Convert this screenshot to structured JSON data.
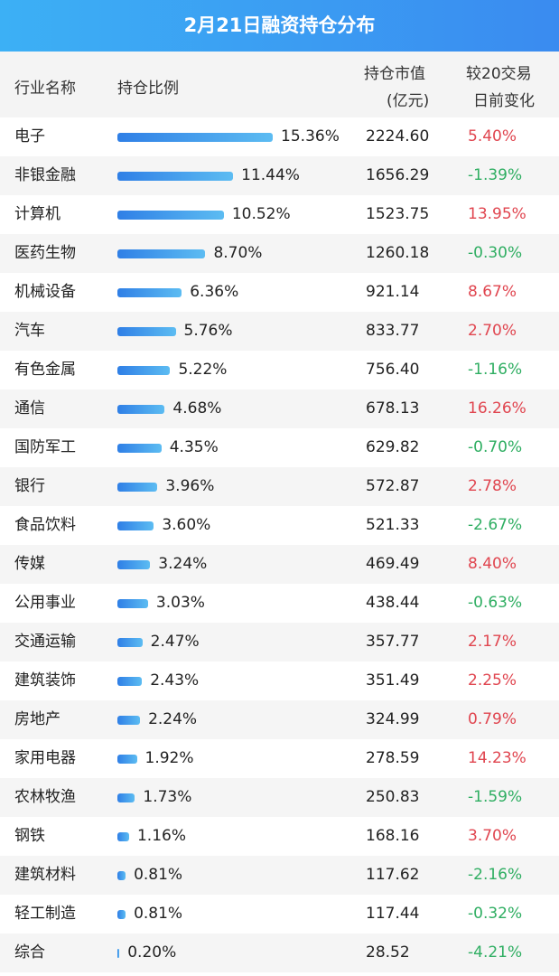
{
  "title": "2月21日融资持仓分布",
  "colors": {
    "up": "#e0454f",
    "down": "#2fae62",
    "bar_start": "#2f7fe6",
    "bar_end": "#5cbcf2",
    "header": "#3a9ff2"
  },
  "columns": {
    "industry": "行业名称",
    "ratio": "持仓比例",
    "value_l1": "持仓市值",
    "value_l2": "(亿元)",
    "change_l1": "较20交易",
    "change_l2": "日前变化"
  },
  "chart_data": {
    "type": "table",
    "columns": [
      "行业名称",
      "持仓比例",
      "持仓市值(亿元)",
      "较20交易日前变化"
    ],
    "rows": [
      {
        "industry": "电子",
        "ratio": "15.36%",
        "ratio_value": 15.36,
        "value": "2224.60",
        "change": "5.40%"
      },
      {
        "industry": "非银金融",
        "ratio": "11.44%",
        "ratio_value": 11.44,
        "value": "1656.29",
        "change": "-1.39%"
      },
      {
        "industry": "计算机",
        "ratio": "10.52%",
        "ratio_value": 10.52,
        "value": "1523.75",
        "change": "13.95%"
      },
      {
        "industry": "医药生物",
        "ratio": "8.70%",
        "ratio_value": 8.7,
        "value": "1260.18",
        "change": "-0.30%"
      },
      {
        "industry": "机械设备",
        "ratio": "6.36%",
        "ratio_value": 6.36,
        "value": "921.14",
        "change": "8.67%"
      },
      {
        "industry": "汽车",
        "ratio": "5.76%",
        "ratio_value": 5.76,
        "value": "833.77",
        "change": "2.70%"
      },
      {
        "industry": "有色金属",
        "ratio": "5.22%",
        "ratio_value": 5.22,
        "value": "756.40",
        "change": "-1.16%"
      },
      {
        "industry": "通信",
        "ratio": "4.68%",
        "ratio_value": 4.68,
        "value": "678.13",
        "change": "16.26%"
      },
      {
        "industry": "国防军工",
        "ratio": "4.35%",
        "ratio_value": 4.35,
        "value": "629.82",
        "change": "-0.70%"
      },
      {
        "industry": "银行",
        "ratio": "3.96%",
        "ratio_value": 3.96,
        "value": "572.87",
        "change": "2.78%"
      },
      {
        "industry": "食品饮料",
        "ratio": "3.60%",
        "ratio_value": 3.6,
        "value": "521.33",
        "change": "-2.67%"
      },
      {
        "industry": "传媒",
        "ratio": "3.24%",
        "ratio_value": 3.24,
        "value": "469.49",
        "change": "8.40%"
      },
      {
        "industry": "公用事业",
        "ratio": "3.03%",
        "ratio_value": 3.03,
        "value": "438.44",
        "change": "-0.63%"
      },
      {
        "industry": "交通运输",
        "ratio": "2.47%",
        "ratio_value": 2.47,
        "value": "357.77",
        "change": "2.17%"
      },
      {
        "industry": "建筑装饰",
        "ratio": "2.43%",
        "ratio_value": 2.43,
        "value": "351.49",
        "change": "2.25%"
      },
      {
        "industry": "房地产",
        "ratio": "2.24%",
        "ratio_value": 2.24,
        "value": "324.99",
        "change": "0.79%"
      },
      {
        "industry": "家用电器",
        "ratio": "1.92%",
        "ratio_value": 1.92,
        "value": "278.59",
        "change": "14.23%"
      },
      {
        "industry": "农林牧渔",
        "ratio": "1.73%",
        "ratio_value": 1.73,
        "value": "250.83",
        "change": "-1.59%"
      },
      {
        "industry": "钢铁",
        "ratio": "1.16%",
        "ratio_value": 1.16,
        "value": "168.16",
        "change": "3.70%"
      },
      {
        "industry": "建筑材料",
        "ratio": "0.81%",
        "ratio_value": 0.81,
        "value": "117.62",
        "change": "-2.16%"
      },
      {
        "industry": "轻工制造",
        "ratio": "0.81%",
        "ratio_value": 0.81,
        "value": "117.44",
        "change": "-0.32%"
      },
      {
        "industry": "综合",
        "ratio": "0.20%",
        "ratio_value": 0.2,
        "value": "28.52",
        "change": "-4.21%"
      }
    ]
  }
}
